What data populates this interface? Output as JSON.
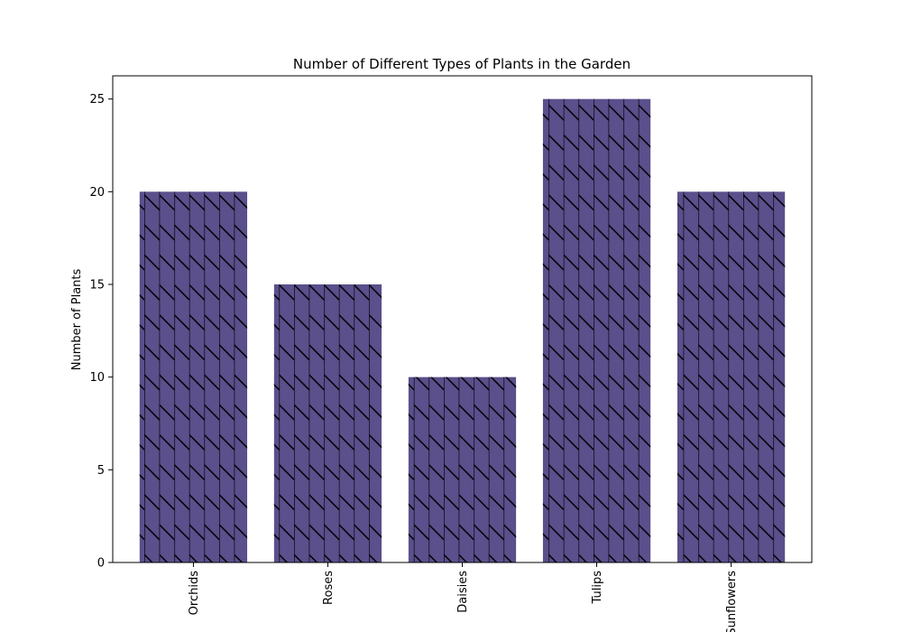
{
  "chart_data": {
    "type": "bar",
    "title": "Number of Different Types of Plants in the Garden",
    "xlabel": "",
    "ylabel": "Number of Plants",
    "categories": [
      "Orchids",
      "Roses",
      "Daisies",
      "Tulips",
      "Sunflowers"
    ],
    "values": [
      20,
      15,
      10,
      25,
      20
    ],
    "ylim": [
      0,
      26.25
    ],
    "yticks": [
      0,
      5,
      10,
      15,
      20,
      25
    ],
    "grid": false,
    "legend": "none",
    "bar_color": "#5b4f8c",
    "hatch_color": "#000000",
    "hatch": "diagonal-and-vertical",
    "x_tick_rotation": "vertical"
  }
}
